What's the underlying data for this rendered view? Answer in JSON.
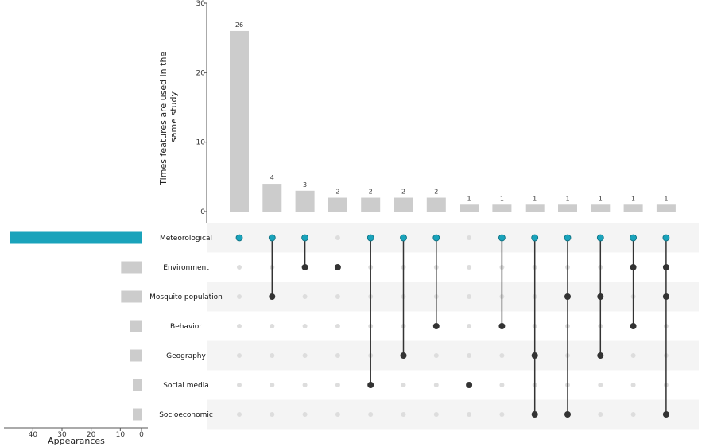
{
  "chart_data": {
    "type": "upset",
    "intersection_axis": {
      "label_lines": [
        "Times features are used in the",
        "same study"
      ],
      "ticks": [
        0,
        10,
        20,
        30
      ],
      "ylim": [
        0,
        30
      ]
    },
    "set_size_axis": {
      "label": "Appearances",
      "ticks": [
        40,
        30,
        20,
        10,
        0
      ],
      "xlim": [
        0,
        45
      ]
    },
    "sets": [
      {
        "name": "Meteorological",
        "size": 45
      },
      {
        "name": "Environment",
        "size": 7
      },
      {
        "name": "Mosquito population",
        "size": 7
      },
      {
        "name": "Behavior",
        "size": 4
      },
      {
        "name": "Geography",
        "size": 4
      },
      {
        "name": "Social media",
        "size": 3
      },
      {
        "name": "Socioeconomic",
        "size": 3
      }
    ],
    "intersections": [
      {
        "value": 26,
        "sets": [
          "Meteorological"
        ]
      },
      {
        "value": 4,
        "sets": [
          "Meteorological",
          "Mosquito population"
        ]
      },
      {
        "value": 3,
        "sets": [
          "Meteorological",
          "Environment"
        ]
      },
      {
        "value": 2,
        "sets": [
          "Environment"
        ]
      },
      {
        "value": 2,
        "sets": [
          "Meteorological",
          "Social media"
        ]
      },
      {
        "value": 2,
        "sets": [
          "Meteorological",
          "Geography"
        ]
      },
      {
        "value": 2,
        "sets": [
          "Meteorological",
          "Behavior"
        ]
      },
      {
        "value": 1,
        "sets": [
          "Social media"
        ]
      },
      {
        "value": 1,
        "sets": [
          "Meteorological",
          "Behavior"
        ]
      },
      {
        "value": 1,
        "sets": [
          "Meteorological",
          "Geography",
          "Socioeconomic"
        ]
      },
      {
        "value": 1,
        "sets": [
          "Meteorological",
          "Mosquito population",
          "Socioeconomic"
        ]
      },
      {
        "value": 1,
        "sets": [
          "Meteorological",
          "Mosquito population",
          "Geography"
        ]
      },
      {
        "value": 1,
        "sets": [
          "Meteorological",
          "Environment",
          "Behavior"
        ]
      },
      {
        "value": 1,
        "sets": [
          "Meteorological",
          "Environment",
          "Mosquito population",
          "Socioeconomic"
        ]
      }
    ],
    "highlight_set": "Meteorological",
    "colors": {
      "bar": "#cccccc",
      "highlight": "#1aa3bb",
      "dot": "#333333",
      "dot_inactive": "#dddddd",
      "stripe": "#f4f4f4"
    }
  }
}
